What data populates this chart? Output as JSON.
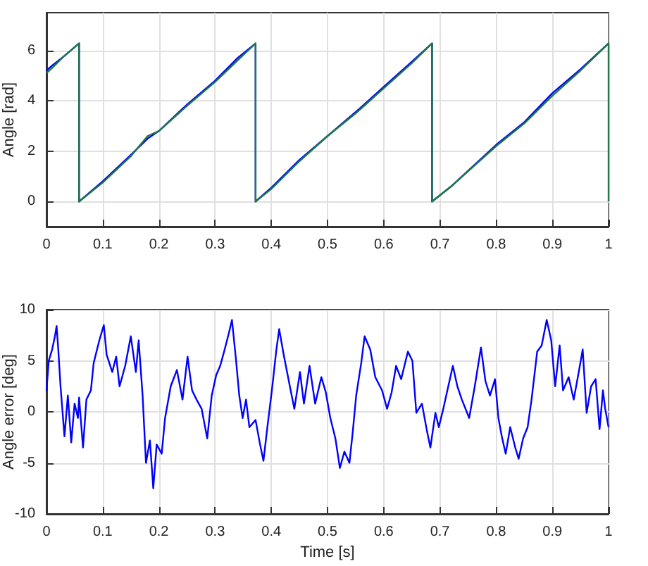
{
  "chart_data": [
    {
      "type": "line",
      "ylabel": "Angle [rad]",
      "xlim": [
        0,
        1
      ],
      "xticks": [
        0,
        0.1,
        0.2,
        0.3,
        0.4,
        0.5,
        0.6,
        0.7,
        0.8,
        0.9,
        1
      ],
      "ylim": [
        -1,
        7.5
      ],
      "yticks": [
        0,
        2,
        4,
        6
      ],
      "grid": true,
      "marker": "none",
      "line_style": "solid",
      "series": [
        {
          "color": "#0000ff",
          "x": [
            0,
            0.01,
            0.03,
            0.058,
            0.058,
            0.1,
            0.15,
            0.18,
            0.2,
            0.25,
            0.3,
            0.34,
            0.372,
            0.372,
            0.4,
            0.45,
            0.5,
            0.55,
            0.6,
            0.65,
            0.686,
            0.686,
            0.72,
            0.8,
            0.85,
            0.9,
            0.95,
            1
          ],
          "values": [
            5.2,
            5.4,
            5.75,
            6.28,
            0,
            0.8,
            1.85,
            2.5,
            2.8,
            3.85,
            4.8,
            5.7,
            6.28,
            0,
            0.55,
            1.65,
            2.6,
            3.55,
            4.55,
            5.55,
            6.28,
            0,
            0.6,
            2.25,
            3.15,
            4.3,
            5.25,
            6.28
          ]
        },
        {
          "color": "#217844",
          "x": [
            0,
            0.01,
            0.03,
            0.058,
            0.058,
            0.1,
            0.15,
            0.18,
            0.2,
            0.25,
            0.3,
            0.34,
            0.372,
            0.372,
            0.4,
            0.45,
            0.5,
            0.55,
            0.6,
            0.65,
            0.686,
            0.686,
            0.72,
            0.8,
            0.85,
            0.9,
            0.95,
            1,
            1
          ],
          "values": [
            5.1,
            5.3,
            5.75,
            6.28,
            0,
            0.75,
            1.8,
            2.6,
            2.8,
            3.8,
            4.75,
            5.6,
            6.28,
            0,
            0.5,
            1.6,
            2.6,
            3.5,
            4.5,
            5.5,
            6.28,
            0,
            0.6,
            2.2,
            3.1,
            4.2,
            5.2,
            6.28,
            0
          ]
        }
      ]
    },
    {
      "type": "line",
      "xlabel": "Time [s]",
      "ylabel": "Angle error [deg]",
      "xlim": [
        0,
        1
      ],
      "xticks": [
        0,
        0.1,
        0.2,
        0.3,
        0.4,
        0.5,
        0.6,
        0.7,
        0.8,
        0.9,
        1
      ],
      "ylim": [
        -10,
        10
      ],
      "yticks": [
        -10,
        -5,
        0,
        5,
        10
      ],
      "grid": true,
      "marker": "none",
      "line_style": "solid",
      "series": [
        {
          "color": "#0000ff",
          "x": [
            0,
            0.004,
            0.01,
            0.015,
            0.018,
            0.021,
            0.025,
            0.032,
            0.038,
            0.044,
            0.05,
            0.056,
            0.058,
            0.065,
            0.071,
            0.079,
            0.084,
            0.094,
            0.102,
            0.107,
            0.117,
            0.124,
            0.13,
            0.14,
            0.15,
            0.159,
            0.164,
            0.171,
            0.177,
            0.184,
            0.19,
            0.196,
            0.205,
            0.211,
            0.221,
            0.232,
            0.242,
            0.251,
            0.259,
            0.267,
            0.276,
            0.286,
            0.294,
            0.302,
            0.309,
            0.316,
            0.324,
            0.33,
            0.337,
            0.343,
            0.349,
            0.355,
            0.361,
            0.372,
            0.38,
            0.386,
            0.393,
            0.401,
            0.409,
            0.414,
            0.422,
            0.433,
            0.441,
            0.451,
            0.458,
            0.468,
            0.478,
            0.489,
            0.497,
            0.505,
            0.514,
            0.522,
            0.53,
            0.539,
            0.545,
            0.551,
            0.56,
            0.566,
            0.576,
            0.585,
            0.597,
            0.606,
            0.614,
            0.622,
            0.631,
            0.643,
            0.651,
            0.658,
            0.668,
            0.677,
            0.683,
            0.692,
            0.698,
            0.706,
            0.714,
            0.723,
            0.731,
            0.739,
            0.752,
            0.762,
            0.773,
            0.781,
            0.789,
            0.798,
            0.804,
            0.81,
            0.817,
            0.825,
            0.834,
            0.84,
            0.848,
            0.856,
            0.863,
            0.873,
            0.881,
            0.89,
            0.898,
            0.905,
            0.913,
            0.919,
            0.929,
            0.938,
            0.946,
            0.954,
            0.961,
            0.969,
            0.977,
            0.984,
            0.99,
            0.994,
            1
          ],
          "values": [
            2.1,
            5,
            6.1,
            7.4,
            8.4,
            6.1,
            2.5,
            -2.4,
            1.6,
            -3,
            0.8,
            -0.6,
            1.4,
            -3.5,
            1.2,
            2.1,
            4.8,
            7,
            8.5,
            5.6,
            3.9,
            5.4,
            2.5,
            4.5,
            7.4,
            3.9,
            7,
            1.6,
            -5,
            -2.8,
            -7.5,
            -3.2,
            -4.1,
            -0.6,
            2.5,
            4.1,
            1.2,
            5.4,
            2.1,
            1.2,
            0.3,
            -2.6,
            1.6,
            3.6,
            4.5,
            5.9,
            7.6,
            9,
            5.2,
            1.6,
            -0.6,
            1.2,
            -1.5,
            -0.8,
            -3.2,
            -4.8,
            -1.5,
            2.1,
            6.1,
            8.1,
            5.6,
            2.5,
            0.3,
            3.9,
            0.8,
            4.5,
            0.8,
            3.4,
            1.9,
            -0.6,
            -2.6,
            -5.5,
            -3.9,
            -5,
            -1.9,
            1.6,
            4.8,
            7.4,
            6.1,
            3.4,
            2.1,
            0.3,
            1.9,
            4.5,
            3.2,
            5.9,
            5,
            -0.1,
            0.8,
            -1.9,
            -3.5,
            -0.1,
            -1.5,
            0.3,
            2.3,
            4.5,
            2.5,
            1.2,
            -0.6,
            2.5,
            6.3,
            3,
            1.6,
            3.2,
            -0.6,
            -2.4,
            -4.1,
            -1.5,
            -3.5,
            -4.6,
            -2.6,
            -1.5,
            1.2,
            5.9,
            6.5,
            9,
            7,
            2.5,
            6.5,
            2.1,
            3.4,
            1.2,
            3.6,
            6.1,
            -0.1,
            2.5,
            3.2,
            -1.7,
            2.1,
            0.3,
            -1.5
          ]
        }
      ]
    }
  ]
}
